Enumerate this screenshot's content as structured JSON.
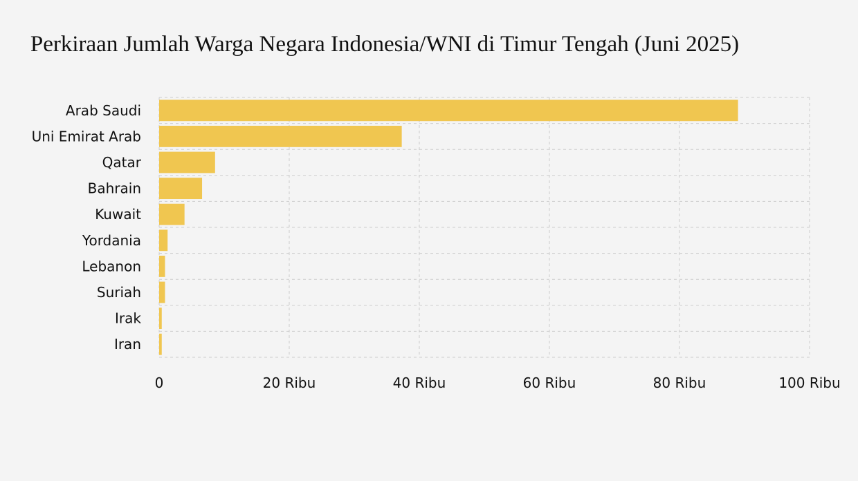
{
  "chart_data": {
    "type": "bar",
    "orientation": "horizontal",
    "title": "Perkiraan Jumlah Warga Negara Indonesia/WNI di Timur Tengah (Juni 2025)",
    "categories": [
      "Arab Saudi",
      "Uni Emirat Arab",
      "Qatar",
      "Bahrain",
      "Kuwait",
      "Yordania",
      "Lebanon",
      "Suriah",
      "Irak",
      "Iran"
    ],
    "values": [
      89000,
      37300,
      8600,
      6600,
      3900,
      1300,
      900,
      900,
      400,
      400
    ],
    "xlim": [
      0,
      100000
    ],
    "xticks": [
      {
        "value": 0,
        "label": "0"
      },
      {
        "value": 20000,
        "label": "20 Ribu"
      },
      {
        "value": 40000,
        "label": "40 Ribu"
      },
      {
        "value": 60000,
        "label": "60 Ribu"
      },
      {
        "value": 80000,
        "label": "80 Ribu"
      },
      {
        "value": 100000,
        "label": "100 Ribu"
      }
    ],
    "grid": true,
    "bar_color": "#f0c650",
    "grid_color": "#cccccc",
    "background": "#f4f4f4"
  }
}
